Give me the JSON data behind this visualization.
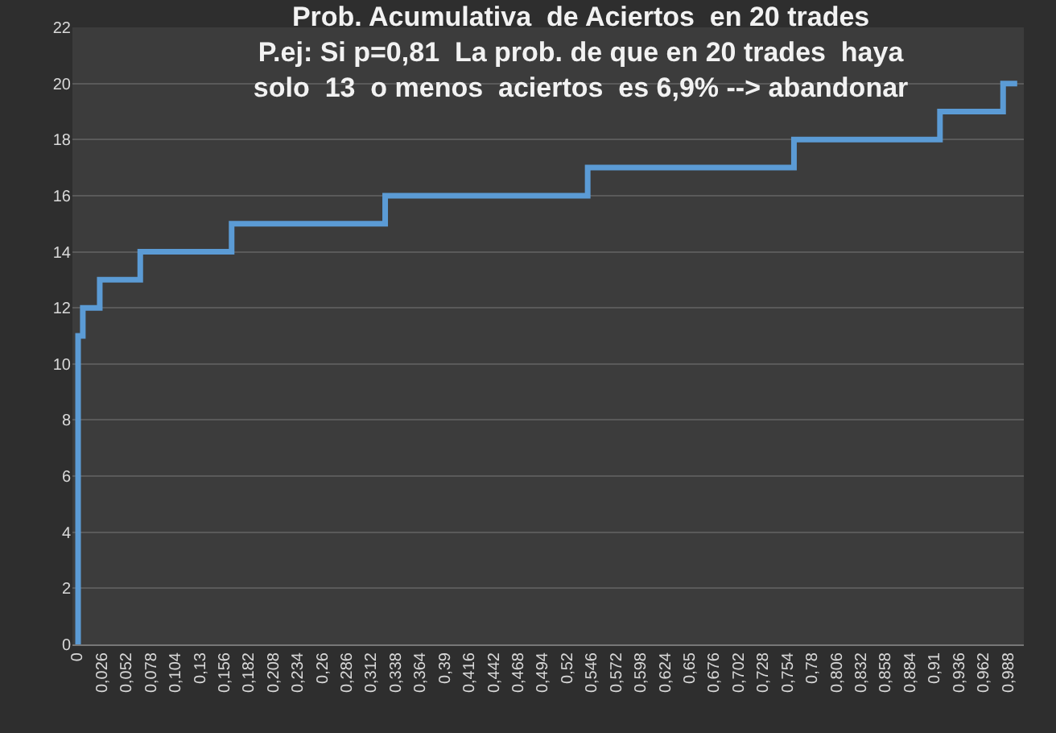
{
  "chart_data": {
    "type": "step",
    "title": "Prob. Acumulativa  de Aciertos  en 20 trades\nP.ej: Si p=0,81  La prob. de que en 20 trades  haya\nsolo  13  o menos  aciertos  es 6,9% --> abandonar",
    "x": [
      0,
      0.001,
      0.006,
      0.024,
      0.067,
      0.164,
      0.327,
      0.542,
      0.761,
      0.916,
      0.983,
      0.998
    ],
    "series": [
      {
        "color": "#5b9bd5",
        "values": [
          0,
          11,
          12,
          13,
          14,
          15,
          16,
          17,
          18,
          19,
          20,
          20
        ]
      }
    ],
    "xlim": [
      -0.005,
      1.005
    ],
    "xticks": [
      {
        "value": 0,
        "label": "0"
      },
      {
        "value": 0.026,
        "label": "0,026"
      },
      {
        "value": 0.052,
        "label": "0,052"
      },
      {
        "value": 0.078,
        "label": "0,078"
      },
      {
        "value": 0.104,
        "label": "0,104"
      },
      {
        "value": 0.13,
        "label": "0,13"
      },
      {
        "value": 0.156,
        "label": "0,156"
      },
      {
        "value": 0.182,
        "label": "0,182"
      },
      {
        "value": 0.208,
        "label": "0,208"
      },
      {
        "value": 0.234,
        "label": "0,234"
      },
      {
        "value": 0.26,
        "label": "0,26"
      },
      {
        "value": 0.286,
        "label": "0,286"
      },
      {
        "value": 0.312,
        "label": "0,312"
      },
      {
        "value": 0.338,
        "label": "0,338"
      },
      {
        "value": 0.364,
        "label": "0,364"
      },
      {
        "value": 0.39,
        "label": "0,39"
      },
      {
        "value": 0.416,
        "label": "0,416"
      },
      {
        "value": 0.442,
        "label": "0,442"
      },
      {
        "value": 0.468,
        "label": "0,468"
      },
      {
        "value": 0.494,
        "label": "0,494"
      },
      {
        "value": 0.52,
        "label": "0,52"
      },
      {
        "value": 0.546,
        "label": "0,546"
      },
      {
        "value": 0.572,
        "label": "0,572"
      },
      {
        "value": 0.598,
        "label": "0,598"
      },
      {
        "value": 0.624,
        "label": "0,624"
      },
      {
        "value": 0.65,
        "label": "0,65"
      },
      {
        "value": 0.676,
        "label": "0,676"
      },
      {
        "value": 0.702,
        "label": "0,702"
      },
      {
        "value": 0.728,
        "label": "0,728"
      },
      {
        "value": 0.754,
        "label": "0,754"
      },
      {
        "value": 0.78,
        "label": "0,78"
      },
      {
        "value": 0.806,
        "label": "0,806"
      },
      {
        "value": 0.832,
        "label": "0,832"
      },
      {
        "value": 0.858,
        "label": "0,858"
      },
      {
        "value": 0.884,
        "label": "0,884"
      },
      {
        "value": 0.91,
        "label": "0,91"
      },
      {
        "value": 0.936,
        "label": "0,936"
      },
      {
        "value": 0.962,
        "label": "0,962"
      },
      {
        "value": 0.988,
        "label": "0,988"
      }
    ],
    "ylim": [
      0,
      22
    ],
    "yticks": [
      0,
      2,
      4,
      6,
      8,
      10,
      12,
      14,
      16,
      18,
      20,
      22
    ],
    "grid": "y",
    "legend": false,
    "marker": "none",
    "line_style": "solid"
  }
}
